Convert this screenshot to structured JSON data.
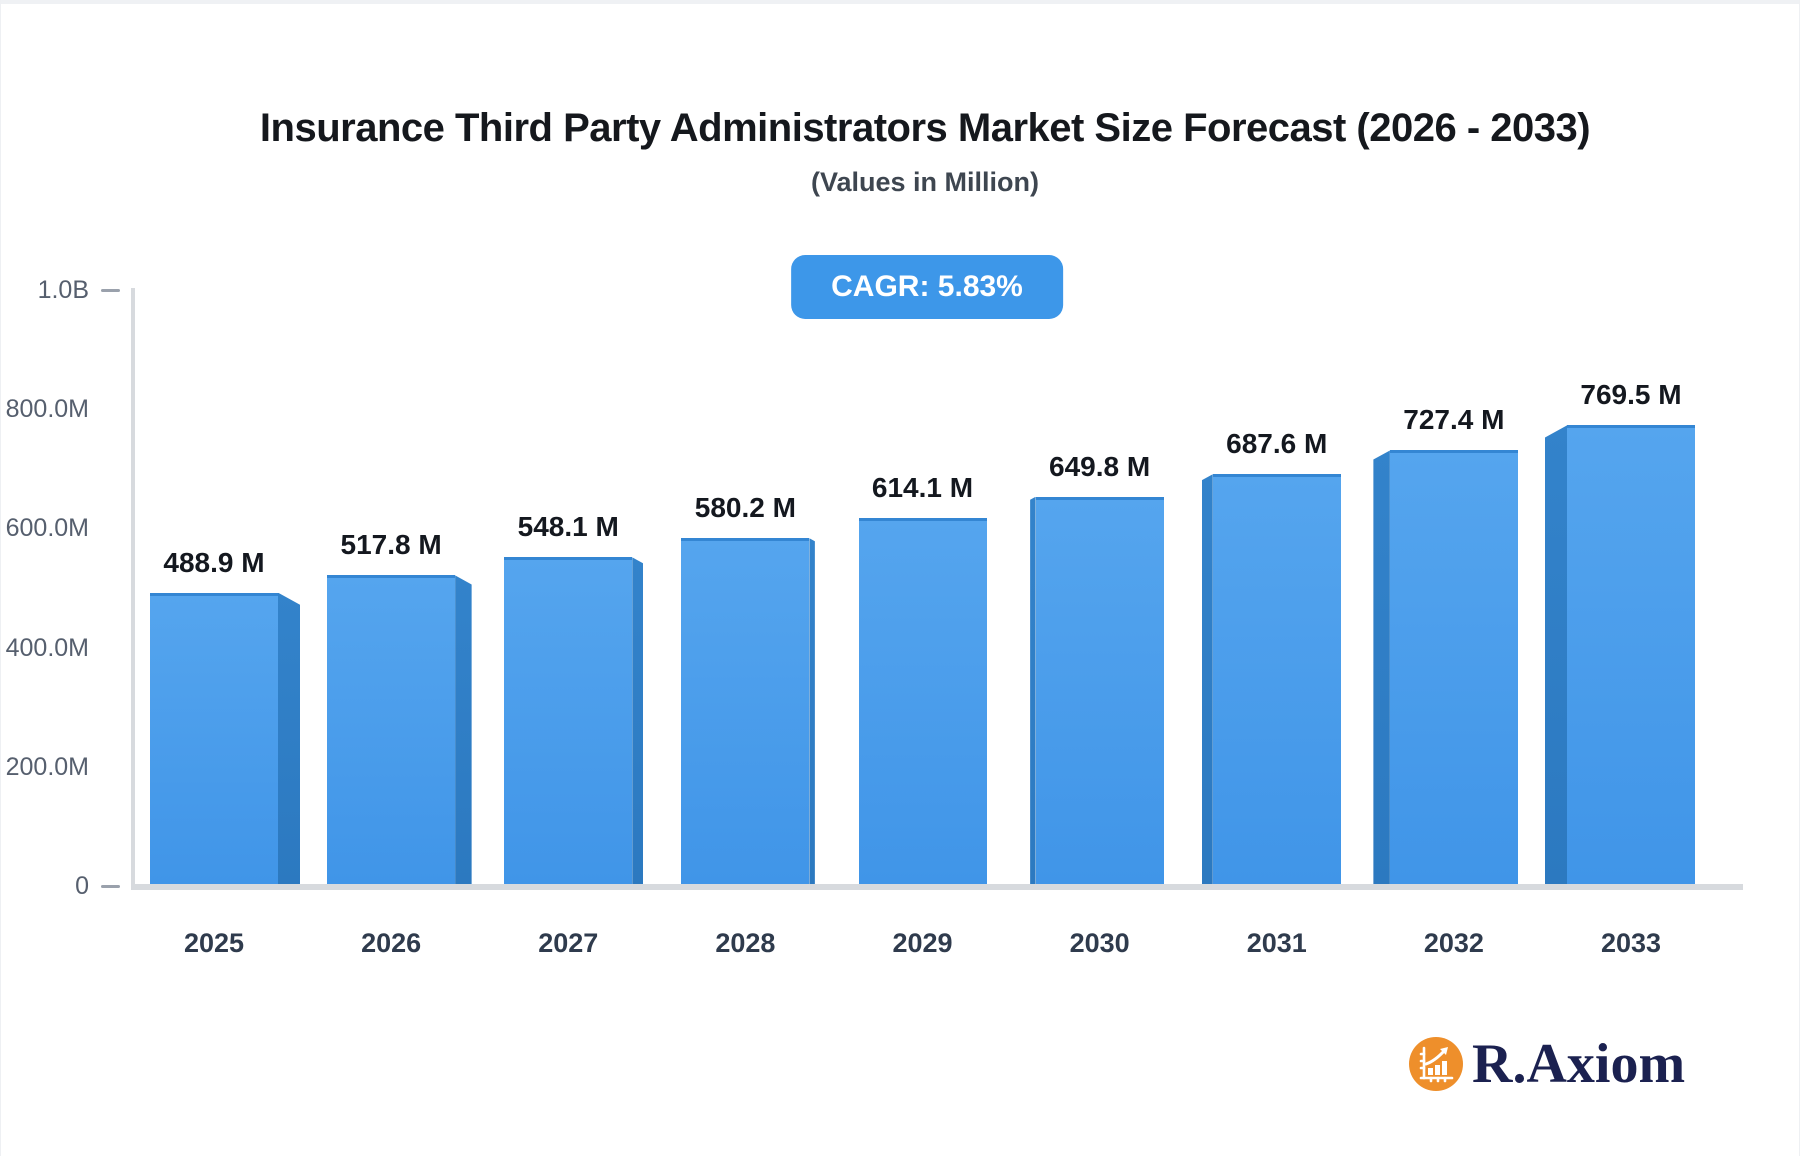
{
  "header": {
    "title": "Insurance Third Party Administrators Market Size Forecast (2026 - 2033)",
    "subtitle": "(Values in Million)"
  },
  "badge": {
    "label": "CAGR: 5.83%",
    "background_color": "#3d97e9",
    "text_color": "#ffffff"
  },
  "chart_data": {
    "type": "bar",
    "title": "Insurance Third Party Administrators Market Size Forecast (2026 - 2033)",
    "subtitle": "(Values in Million)",
    "cagr": "5.83%",
    "categories": [
      "2025",
      "2026",
      "2027",
      "2028",
      "2029",
      "2030",
      "2031",
      "2032",
      "2033"
    ],
    "values": [
      488.9,
      517.8,
      548.1,
      580.2,
      614.1,
      649.8,
      687.6,
      727.4,
      769.5
    ],
    "value_suffix": " M",
    "value_labels": [
      "488.9 M",
      "517.8 M",
      "548.1 M",
      "580.2 M",
      "614.1 M",
      "649.8 M",
      "687.6 M",
      "727.4 M",
      "769.5 M"
    ],
    "unit": "Million USD",
    "xlabel": "",
    "ylabel": "",
    "ylim_millions": [
      0,
      1000
    ],
    "y_ticks": [
      {
        "label": "1.0B",
        "value": 1000,
        "dash": true
      },
      {
        "label": "800.0M",
        "value": 800,
        "dash": false
      },
      {
        "label": "600.0M",
        "value": 600,
        "dash": false
      },
      {
        "label": "400.0M",
        "value": 400,
        "dash": false
      },
      {
        "label": "200.0M",
        "value": 200,
        "dash": false
      },
      {
        "label": "0",
        "value": 0,
        "dash": true
      }
    ],
    "grid": false,
    "legend": false,
    "style": "3d-perspective-bars",
    "bar_color": "#4a9dea",
    "bar_side_color": "#2e7ec5"
  },
  "logo": {
    "text": "R.Axiom",
    "icon": "bar-chart-growth-icon",
    "circle_color": "#ee8f2b",
    "glyph_color": "#ffffff",
    "text_color": "#1b2150"
  }
}
